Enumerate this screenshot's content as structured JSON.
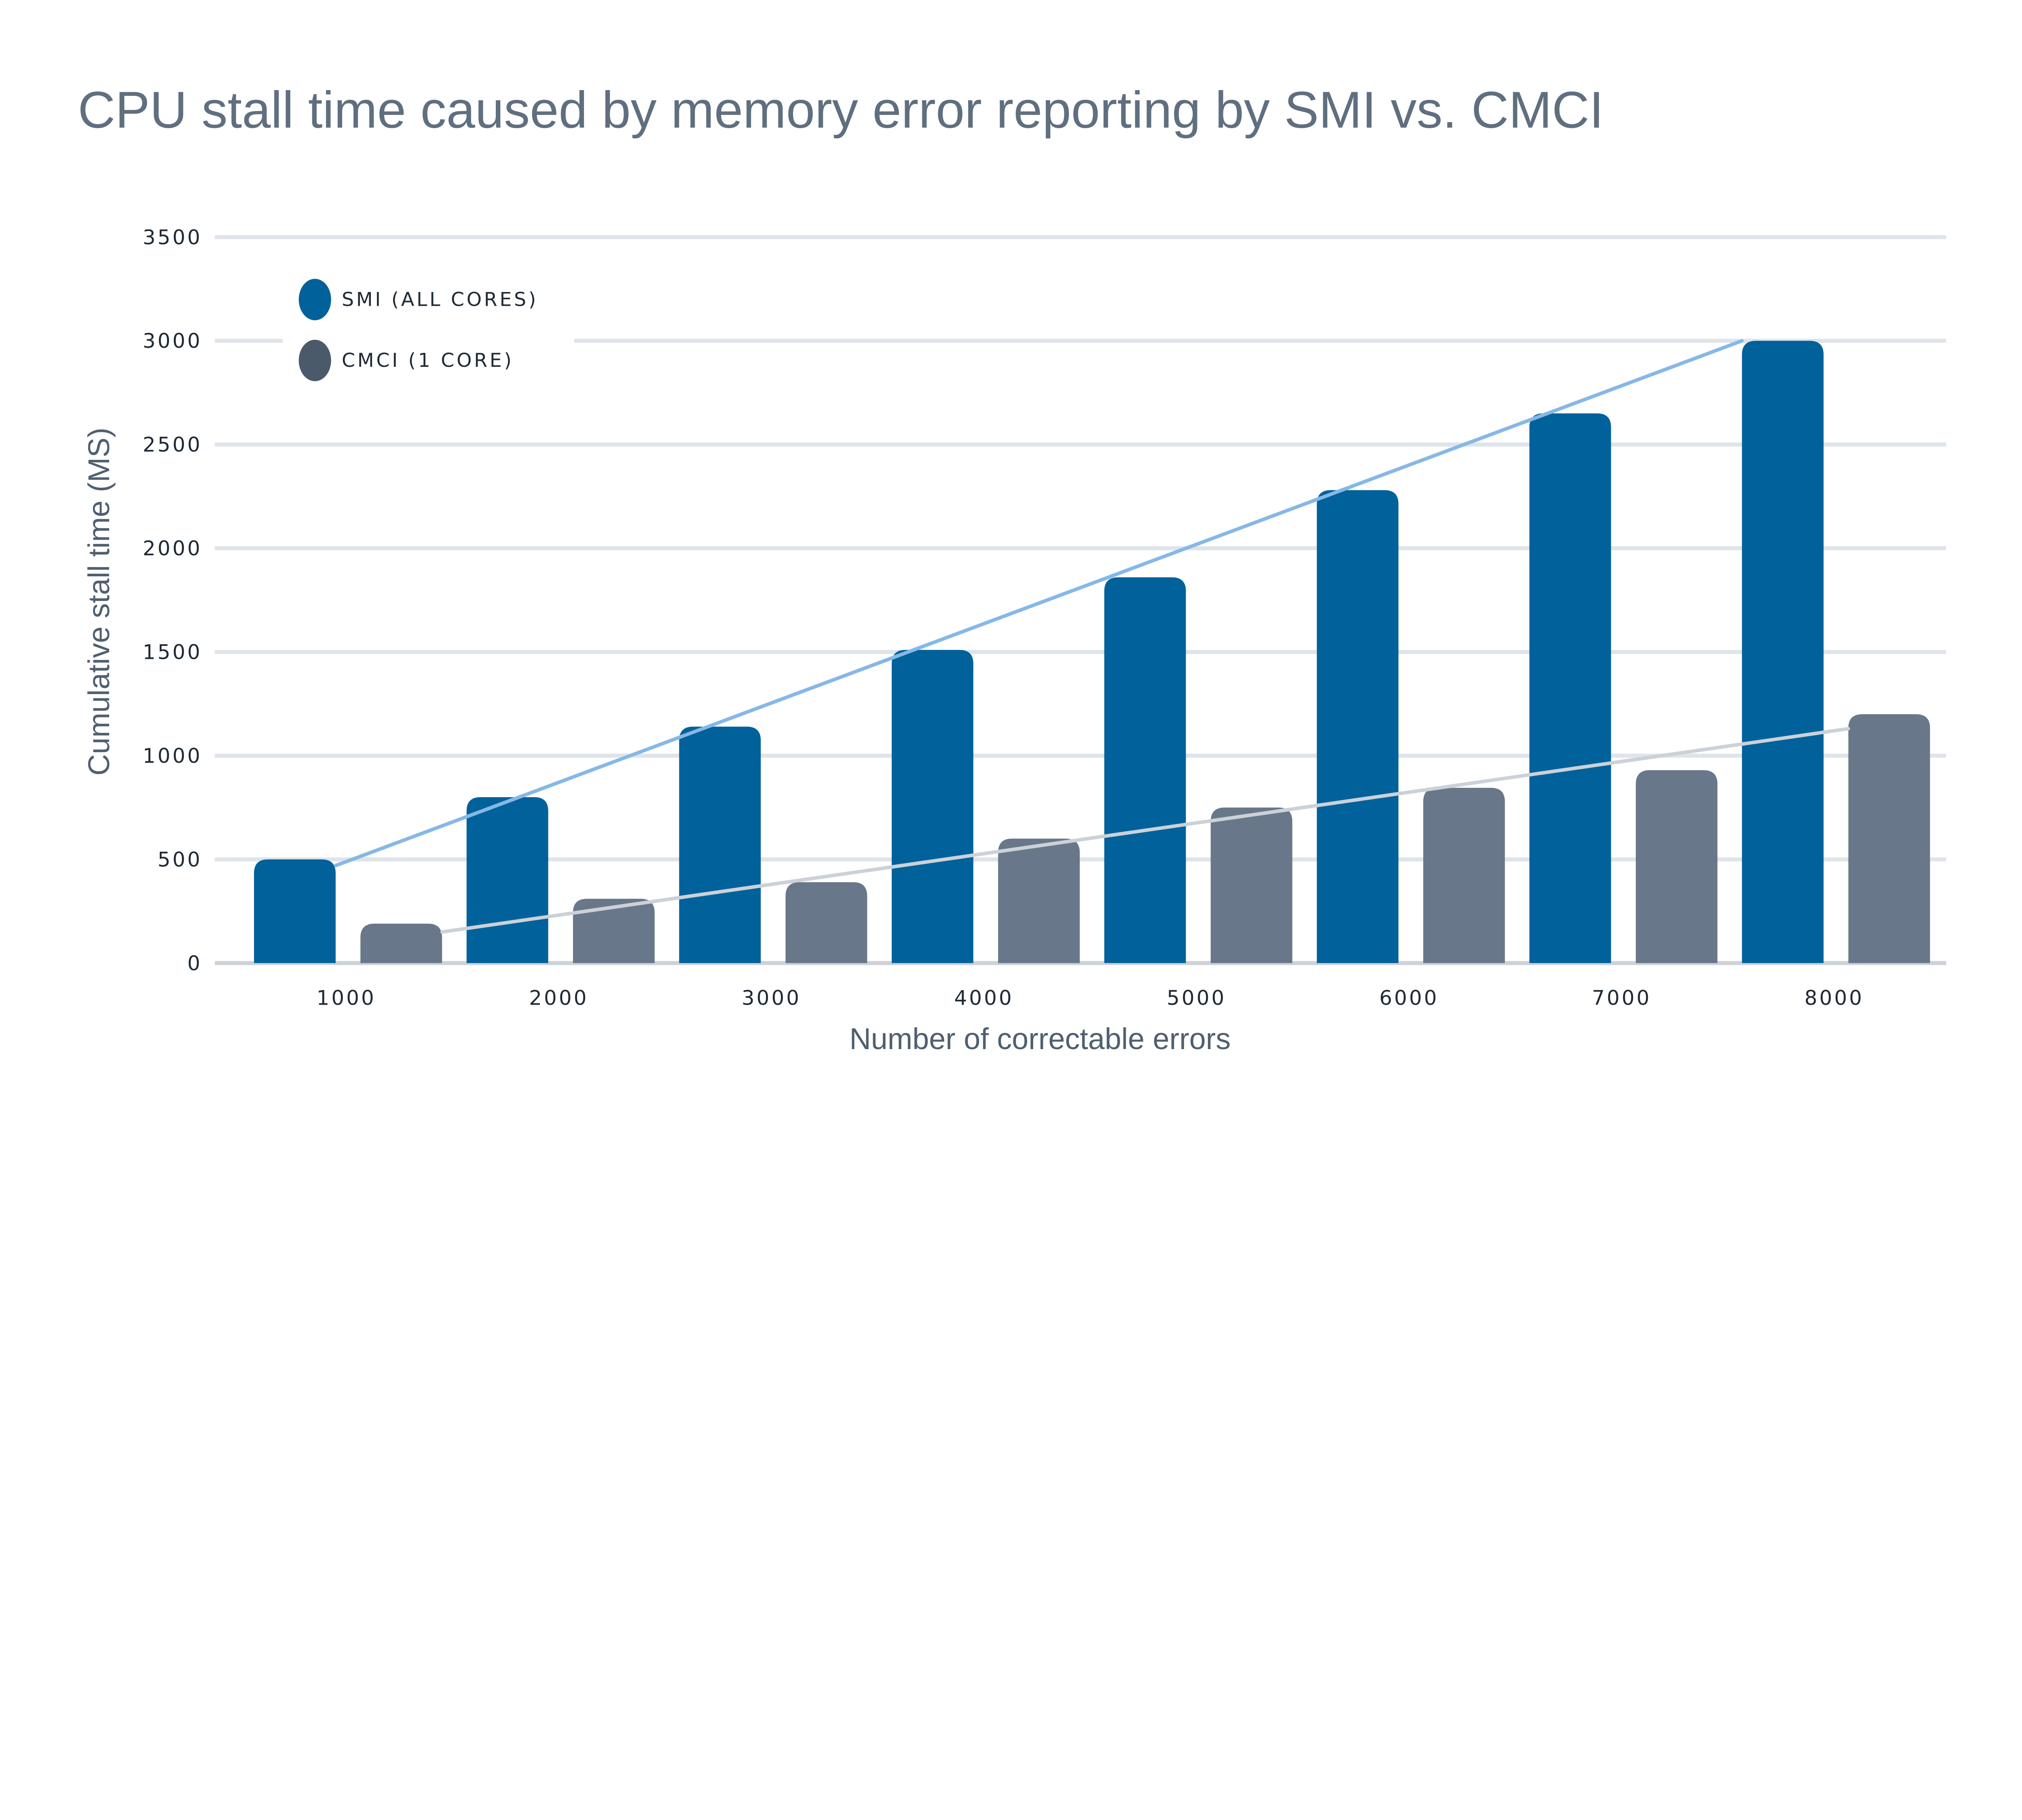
{
  "chart_data": {
    "type": "bar",
    "title": "CPU stall time caused by memory error reporting by SMI vs. CMCI",
    "xlabel": "Number of correctable errors",
    "ylabel": "Cumulative stall time (MS)",
    "categories": [
      "1000",
      "2000",
      "3000",
      "4000",
      "5000",
      "6000",
      "7000",
      "8000"
    ],
    "y_ticks": [
      "0",
      "500",
      "1000",
      "1500",
      "2000",
      "2500",
      "3000",
      "3500"
    ],
    "ylim": [
      0,
      3500
    ],
    "grid": true,
    "legend_position": "top-left",
    "series": [
      {
        "name": "SMI (ALL CORES)",
        "color": "#01619b",
        "trend_color": "#85b8e6",
        "values": [
          500,
          800,
          1140,
          1510,
          1860,
          2280,
          2650,
          3000
        ],
        "trendline": [
          470,
          3000
        ]
      },
      {
        "name": "CMCI (1 CORE)",
        "color": "#687789",
        "legend_color": "#4a5a6a",
        "trend_color": "#ccd1d8",
        "values": [
          190,
          310,
          390,
          600,
          750,
          845,
          930,
          1200
        ],
        "trendline": [
          150,
          1130
        ]
      }
    ]
  }
}
